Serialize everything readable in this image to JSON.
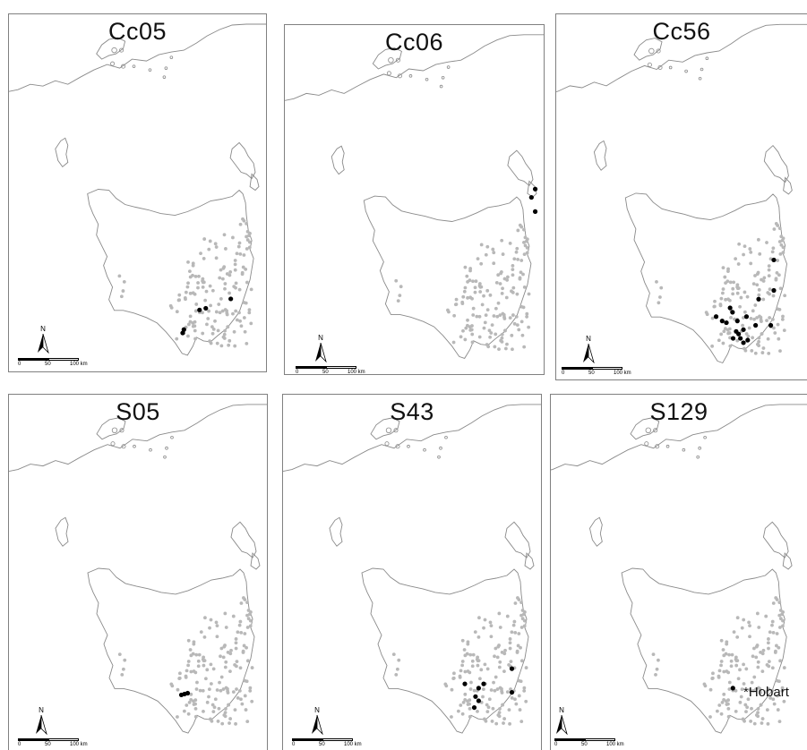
{
  "panels": [
    {
      "title": "Cc05",
      "scale": {
        "zero": "0",
        "fifty": "50",
        "hundred": "100 km"
      },
      "n": "N",
      "marked_sites": [
        [
          -43.05,
          147.35
        ],
        [
          -43.03,
          147.45
        ],
        [
          -42.92,
          147.85
        ],
        [
          -43.32,
          147.08
        ],
        [
          -43.28,
          147.1
        ]
      ]
    },
    {
      "title": "Cc06",
      "scale": {
        "zero": "0",
        "fifty": "50",
        "hundred": "100 km"
      },
      "n": "N",
      "marked_sites": [
        [
          -41.55,
          148.28
        ],
        [
          -41.65,
          148.22
        ],
        [
          -41.82,
          148.28
        ]
      ]
    },
    {
      "title": "Cc56",
      "scale": {
        "zero": "0",
        "fifty": "50",
        "hundred": "100 km"
      },
      "n": "N",
      "marked_sites": [
        [
          -42.4,
          148.0
        ],
        [
          -42.75,
          148.0
        ],
        [
          -42.85,
          147.75
        ],
        [
          -42.95,
          147.28
        ],
        [
          -43.0,
          147.32
        ],
        [
          -43.05,
          147.05
        ],
        [
          -43.1,
          147.15
        ],
        [
          -43.12,
          147.22
        ],
        [
          -43.1,
          147.4
        ],
        [
          -43.2,
          147.5
        ],
        [
          -43.22,
          147.38
        ],
        [
          -43.25,
          147.42
        ],
        [
          -43.3,
          147.33
        ],
        [
          -43.3,
          147.45
        ],
        [
          -43.35,
          147.5
        ],
        [
          -43.32,
          147.57
        ],
        [
          -43.15,
          147.7
        ],
        [
          -43.15,
          147.95
        ],
        [
          -43.05,
          147.55
        ]
      ]
    },
    {
      "title": "S05",
      "scale": {
        "zero": "0",
        "fifty": "50",
        "hundred": "100 km"
      },
      "n": "N",
      "marked_sites": [
        [
          -43.13,
          147.05
        ],
        [
          -43.12,
          147.1
        ],
        [
          -43.11,
          147.15
        ]
      ]
    },
    {
      "title": "S43",
      "scale": {
        "zero": "0",
        "fifty": "50",
        "hundred": "100 km"
      },
      "n": "N",
      "marked_sites": [
        [
          -42.82,
          147.95
        ],
        [
          -43.0,
          147.5
        ],
        [
          -43.05,
          147.42
        ],
        [
          -43.15,
          147.37
        ],
        [
          -43.2,
          147.42
        ],
        [
          -43.28,
          147.35
        ],
        [
          -43.1,
          147.95
        ],
        [
          -43.0,
          147.2
        ]
      ]
    },
    {
      "title": "S129",
      "scale": {
        "zero": "0",
        "fifty": "50",
        "hundred": "100 km"
      },
      "n": "N",
      "hobart_label": "*Hobart",
      "marked_sites": [
        [
          -43.05,
          147.35
        ]
      ]
    }
  ],
  "colors": {
    "coast": "#8a8a8a",
    "background_site": "#b8b8b8",
    "marked_site": "#000000",
    "border": "#808080"
  }
}
